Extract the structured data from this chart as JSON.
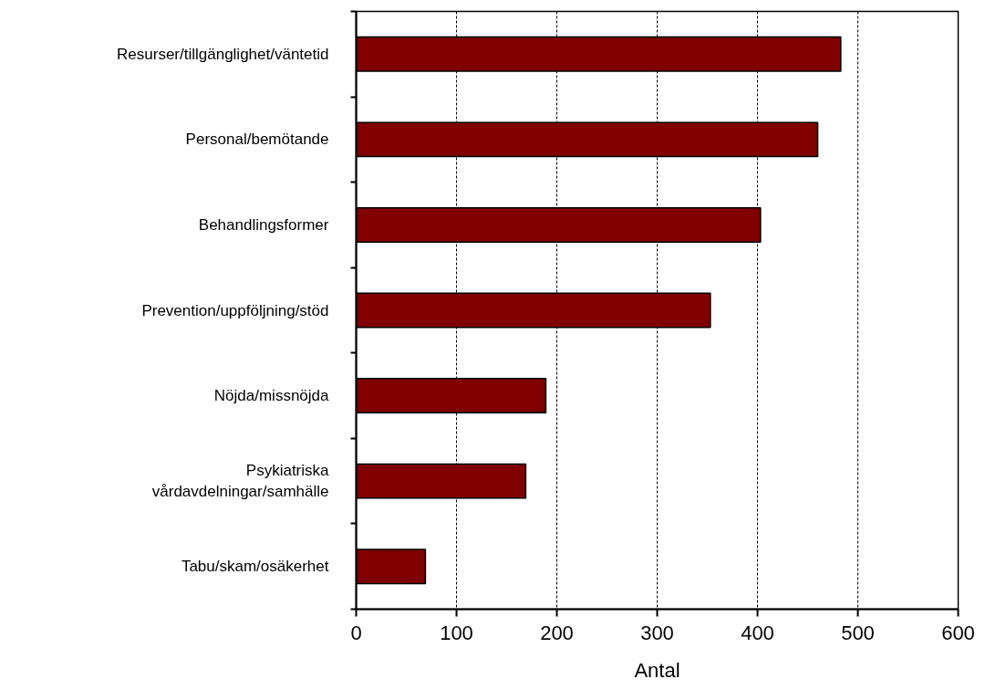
{
  "chart_data": {
    "type": "bar",
    "orientation": "horizontal",
    "xlabel": "Antal",
    "categories": [
      "Resurser/tillgänglighet/väntetid",
      "Personal/bemötande",
      "Behandlingsformer",
      "Prevention/uppföljning/stöd",
      "Nöjda/missnöjda",
      "Psykiatriska vårdavdelningar/samhälle",
      "Tabu/skam/osäkerhet"
    ],
    "values": [
      483,
      460,
      403,
      353,
      189,
      169,
      69
    ],
    "color": "#800000",
    "xlim": [
      0,
      600
    ],
    "xticks": [
      0,
      100,
      200,
      300,
      400,
      500,
      600
    ],
    "grid": "x"
  }
}
